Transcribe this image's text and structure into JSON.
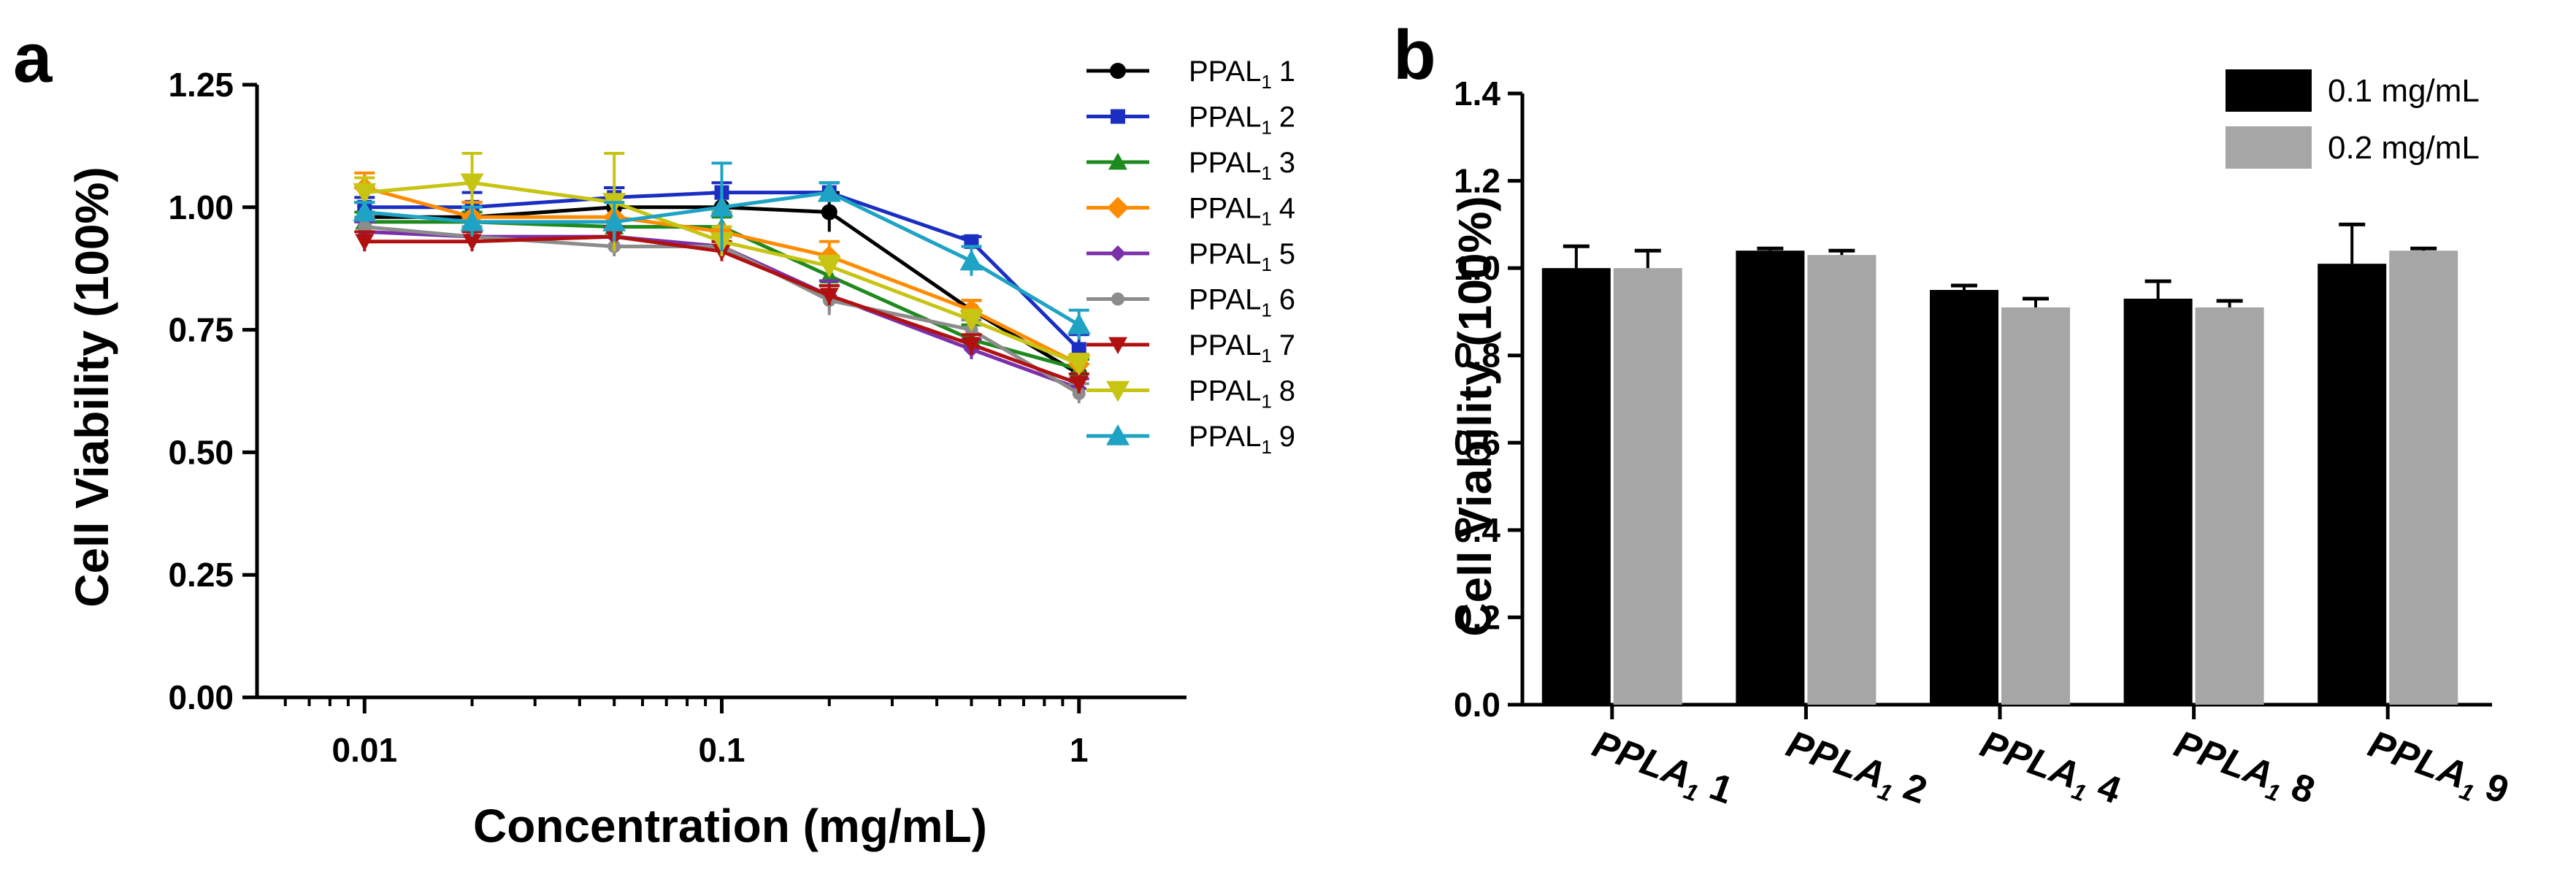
{
  "chart_data": [
    {
      "panel": "a",
      "type": "line",
      "title": "",
      "xlabel": "Concentration (mg/mL)",
      "ylabel": "Cell Viability (100%)",
      "xscale": "log",
      "x": [
        0.01,
        0.02,
        0.05,
        0.1,
        0.2,
        0.5,
        1
      ],
      "xlim": [
        0.005,
        2
      ],
      "xticks": [
        0.01,
        0.1,
        1
      ],
      "xtick_labels": [
        "0.01",
        "0.1",
        "1"
      ],
      "ylim": [
        0,
        1.25
      ],
      "yticks": [
        0,
        0.25,
        0.5,
        0.75,
        1.0,
        1.25
      ],
      "ytick_labels": [
        "0.00",
        "0.25",
        "0.50",
        "0.75",
        "1.00",
        "1.25"
      ],
      "grid": false,
      "legend_position": "right",
      "series": [
        {
          "name": "PPAL",
          "sub": "1",
          "num": "1",
          "color": "#000000",
          "marker": "circle",
          "values": [
            0.98,
            0.98,
            1.0,
            1.0,
            0.99,
            0.79,
            0.66
          ],
          "errors": [
            0.03,
            0.03,
            0.04,
            0.03,
            0.04,
            0.02,
            0.03
          ]
        },
        {
          "name": "PPAL",
          "sub": "1",
          "num": "2",
          "color": "#1a2fc2",
          "marker": "square",
          "values": [
            1.0,
            1.0,
            1.02,
            1.03,
            1.03,
            0.93,
            0.71
          ],
          "errors": [
            0.02,
            0.03,
            0.02,
            0.02,
            0.02,
            0.01,
            0.03
          ]
        },
        {
          "name": "PPAL",
          "sub": "1",
          "num": "3",
          "color": "#1e8a1e",
          "marker": "triangle-up",
          "values": [
            0.97,
            0.97,
            0.96,
            0.96,
            0.86,
            0.73,
            0.67
          ],
          "errors": [
            0.02,
            0.02,
            0.02,
            0.02,
            0.04,
            0.03,
            0.02
          ]
        },
        {
          "name": "PPAL",
          "sub": "1",
          "num": "4",
          "color": "#ff8c00",
          "marker": "diamond",
          "values": [
            1.04,
            0.98,
            0.98,
            0.95,
            0.9,
            0.79,
            0.68
          ],
          "errors": [
            0.03,
            0.03,
            0.03,
            0.04,
            0.03,
            0.02,
            0.02
          ]
        },
        {
          "name": "PPAL",
          "sub": "1",
          "num": "5",
          "color": "#7b2fa8",
          "marker": "diamond-small",
          "values": [
            0.95,
            0.94,
            0.94,
            0.92,
            0.82,
            0.71,
            0.63
          ],
          "errors": [
            0.02,
            0.02,
            0.02,
            0.02,
            0.03,
            0.02,
            0.02
          ]
        },
        {
          "name": "PPAL",
          "sub": "1",
          "num": "6",
          "color": "#8c8c8c",
          "marker": "circle-small",
          "values": [
            0.96,
            0.94,
            0.92,
            0.92,
            0.81,
            0.75,
            0.62
          ],
          "errors": [
            0.02,
            0.02,
            0.02,
            0.02,
            0.03,
            0.02,
            0.02
          ]
        },
        {
          "name": "PPAL",
          "sub": "1",
          "num": "7",
          "color": "#b01010",
          "marker": "triangle-down",
          "values": [
            0.93,
            0.93,
            0.94,
            0.91,
            0.82,
            0.72,
            0.64
          ],
          "errors": [
            0.02,
            0.02,
            0.02,
            0.02,
            0.02,
            0.02,
            0.02
          ]
        },
        {
          "name": "PPAL",
          "sub": "1",
          "num": "8",
          "color": "#c7c414",
          "marker": "triangle-down-large",
          "values": [
            1.03,
            1.05,
            1.01,
            0.93,
            0.88,
            0.77,
            0.68
          ],
          "errors": [
            0.03,
            0.06,
            0.1,
            0.03,
            0.02,
            0.02,
            0.02
          ]
        },
        {
          "name": "PPAL",
          "sub": "1",
          "num": "9",
          "color": "#1ea3c4",
          "marker": "triangle-up-large",
          "values": [
            0.99,
            0.97,
            0.97,
            1.0,
            1.03,
            0.89,
            0.76
          ],
          "errors": [
            0.02,
            0.03,
            0.04,
            0.09,
            0.02,
            0.03,
            0.03
          ]
        }
      ]
    },
    {
      "panel": "b",
      "type": "bar",
      "title": "",
      "xlabel": "",
      "ylabel": "Cell Viability (100%)",
      "ylim": [
        0,
        1.4
      ],
      "yticks": [
        0,
        0.2,
        0.4,
        0.6,
        0.8,
        1.0,
        1.2,
        1.4
      ],
      "ytick_labels": [
        "0.0",
        "0.2",
        "0.4",
        "0.6",
        "0.8",
        "1.0",
        "1.2",
        "1.4"
      ],
      "grid": false,
      "legend_position": "top-right",
      "categories": [
        {
          "name": "PPLA",
          "sub": "1",
          "num": "1"
        },
        {
          "name": "PPLA",
          "sub": "1",
          "num": "2"
        },
        {
          "name": "PPLA",
          "sub": "1",
          "num": "4"
        },
        {
          "name": "PPLA",
          "sub": "1",
          "num": "8"
        },
        {
          "name": "PPLA",
          "sub": "1",
          "num": "9"
        }
      ],
      "series": [
        {
          "name": "0.1 mg/mL",
          "color": "#000000",
          "values": [
            1.0,
            1.04,
            0.95,
            0.93,
            1.01
          ],
          "errors": [
            0.05,
            0.005,
            0.01,
            0.04,
            0.09
          ]
        },
        {
          "name": "0.2 mg/mL",
          "color": "#a6a6a6",
          "values": [
            1.0,
            1.03,
            0.91,
            0.91,
            1.04
          ],
          "errors": [
            0.04,
            0.01,
            0.02,
            0.015,
            0.005
          ]
        }
      ]
    }
  ],
  "panel_labels": {
    "a": "a",
    "b": "b"
  }
}
